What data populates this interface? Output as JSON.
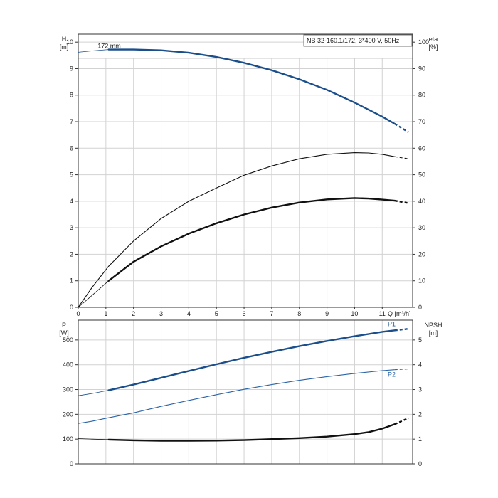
{
  "chart_data": [
    {
      "type": "line",
      "panel": "performance",
      "title": "NB 32-160.1/172, 3*400 V, 50Hz",
      "xlabel": "Q [m³/h]",
      "x_ticks": [
        "0",
        "1",
        "2",
        "3",
        "4",
        "5",
        "6",
        "7",
        "8",
        "9",
        "10",
        "11"
      ],
      "xlim": [
        0,
        12.1
      ],
      "left_axis": {
        "label_top": "H",
        "label_bottom": "[m]",
        "ylim": [
          0,
          10.3
        ],
        "ticks": [
          "0",
          "1",
          "2",
          "3",
          "4",
          "5",
          "6",
          "7",
          "8",
          "9",
          "10"
        ]
      },
      "right_axis": {
        "label_top": "eta",
        "label_bottom": "[%]",
        "ylim": [
          0,
          103
        ],
        "ticks": [
          "0",
          "10",
          "20",
          "30",
          "40",
          "50",
          "60",
          "70",
          "80",
          "90",
          "100"
        ]
      },
      "grid": true,
      "series": [
        {
          "name": "172 mm",
          "axis": "left",
          "color": "#1b4f8c",
          "thin_part": [
            [
              0,
              9.62
            ],
            [
              0.5,
              9.67
            ],
            [
              1.1,
              9.72
            ]
          ],
          "thick_part": [
            [
              1.1,
              9.72
            ],
            [
              2,
              9.72
            ],
            [
              3,
              9.69
            ],
            [
              4,
              9.6
            ],
            [
              5,
              9.44
            ],
            [
              6,
              9.22
            ],
            [
              7,
              8.94
            ],
            [
              8,
              8.6
            ],
            [
              9,
              8.2
            ],
            [
              10,
              7.72
            ],
            [
              11,
              7.19
            ],
            [
              11.45,
              6.92
            ]
          ],
          "dashed_part": [
            [
              11.45,
              6.92
            ],
            [
              11.95,
              6.6
            ]
          ]
        },
        {
          "axis": "left",
          "color": "#111111",
          "thin_part": [
            [
              0,
              0
            ],
            [
              0.5,
              0.45
            ],
            [
              1.1,
              1.0
            ]
          ],
          "thick_part": [
            [
              1.1,
              1.0
            ],
            [
              2,
              1.72
            ],
            [
              3,
              2.3
            ],
            [
              4,
              2.78
            ],
            [
              5,
              3.17
            ],
            [
              6,
              3.5
            ],
            [
              7,
              3.76
            ],
            [
              8,
              3.95
            ],
            [
              9,
              4.07
            ],
            [
              10,
              4.12
            ],
            [
              10.5,
              4.1
            ],
            [
              11,
              4.06
            ],
            [
              11.45,
              4.02
            ]
          ],
          "dashed_part": [
            [
              11.45,
              4.02
            ],
            [
              11.95,
              3.93
            ]
          ]
        },
        {
          "axis": "left",
          "color": "#111111",
          "line_width": "thin",
          "solid_part": [
            [
              0,
              0
            ],
            [
              0.5,
              0.75
            ],
            [
              1.1,
              1.55
            ],
            [
              2,
              2.5
            ],
            [
              3,
              3.35
            ],
            [
              4,
              4.0
            ],
            [
              5,
              4.5
            ],
            [
              6,
              4.98
            ],
            [
              7,
              5.33
            ],
            [
              8,
              5.6
            ],
            [
              9,
              5.77
            ],
            [
              10,
              5.83
            ],
            [
              10.5,
              5.82
            ],
            [
              11,
              5.77
            ],
            [
              11.45,
              5.68
            ]
          ],
          "dashed_part": [
            [
              11.45,
              5.68
            ],
            [
              11.95,
              5.6
            ]
          ]
        }
      ]
    },
    {
      "type": "line",
      "panel": "power",
      "xlim": [
        0,
        12.1
      ],
      "left_axis": {
        "label_top": "P",
        "label_bottom": "[W]",
        "ylim": [
          0,
          580
        ],
        "ticks": [
          "0",
          "100",
          "200",
          "300",
          "400",
          "500"
        ]
      },
      "right_axis": {
        "label_top": "NPSH",
        "label_bottom": "[m]",
        "ylim": [
          0,
          5.8
        ],
        "ticks": [
          "0",
          "1",
          "2",
          "3",
          "4",
          "5"
        ]
      },
      "grid": true,
      "series": [
        {
          "name": "P1",
          "axis": "left",
          "color": "#1b4f8c",
          "thin_part": [
            [
              0,
              275
            ],
            [
              0.5,
              284
            ],
            [
              1.1,
              297
            ]
          ],
          "thick_part": [
            [
              1.1,
              297
            ],
            [
              2,
              320
            ],
            [
              3,
              347
            ],
            [
              4,
              375
            ],
            [
              5,
              402
            ],
            [
              6,
              428
            ],
            [
              7,
              452
            ],
            [
              8,
              475
            ],
            [
              9,
              496
            ],
            [
              10,
              515
            ],
            [
              11,
              533
            ],
            [
              11.45,
              539
            ]
          ],
          "dashed_part": [
            [
              11.45,
              539
            ],
            [
              11.95,
              545
            ]
          ]
        },
        {
          "name": "P2",
          "axis": "left",
          "color": "#2a64a8",
          "line_width": "thin",
          "solid_part": [
            [
              0,
              163
            ],
            [
              0.5,
              172
            ],
            [
              1.1,
              186
            ],
            [
              2,
              206
            ],
            [
              3,
              232
            ],
            [
              4,
              256
            ],
            [
              5,
              279
            ],
            [
              6,
              301
            ],
            [
              7,
              320
            ],
            [
              8,
              337
            ],
            [
              9,
              352
            ],
            [
              10,
              365
            ],
            [
              11,
              376
            ],
            [
              11.45,
              380
            ]
          ],
          "dashed_part": [
            [
              11.45,
              380
            ],
            [
              11.95,
              383
            ]
          ]
        },
        {
          "axis": "right",
          "color": "#111111",
          "thin_part": [
            [
              0,
              1.02
            ],
            [
              0.5,
              1.0
            ],
            [
              1.1,
              0.98
            ]
          ],
          "thick_part": [
            [
              1.1,
              0.98
            ],
            [
              2,
              0.95
            ],
            [
              3,
              0.93
            ],
            [
              4,
              0.93
            ],
            [
              5,
              0.94
            ],
            [
              6,
              0.96
            ],
            [
              7,
              1.0
            ],
            [
              8,
              1.04
            ],
            [
              9,
              1.1
            ],
            [
              10,
              1.2
            ],
            [
              10.5,
              1.28
            ],
            [
              11,
              1.42
            ],
            [
              11.45,
              1.6
            ]
          ],
          "dashed_part": [
            [
              11.45,
              1.6
            ],
            [
              11.95,
              1.85
            ]
          ]
        }
      ]
    }
  ]
}
